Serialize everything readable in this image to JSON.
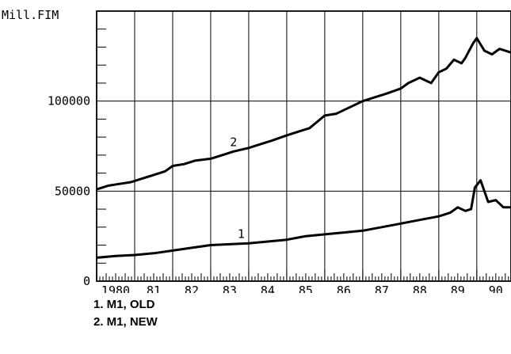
{
  "chart_data": {
    "type": "line",
    "ylabel": "Mill.FIM",
    "xlabel": "",
    "ylim": [
      0,
      150000
    ],
    "xlim": [
      1980.0,
      1990.9
    ],
    "yticks": [
      0,
      50000,
      100000
    ],
    "ytick_labels": [
      "0",
      "50000",
      "100000"
    ],
    "xtick_labels": [
      {
        "label": "1980",
        "x": 1980.5
      },
      {
        "label": "81",
        "x": 1981.5
      },
      {
        "label": "82",
        "x": 1982.5
      },
      {
        "label": "83",
        "x": 1983.5
      },
      {
        "label": "84",
        "x": 1984.5
      },
      {
        "label": "85",
        "x": 1985.5
      },
      {
        "label": "86",
        "x": 1986.5
      },
      {
        "label": "87",
        "x": 1987.5
      },
      {
        "label": "88",
        "x": 1988.5
      },
      {
        "label": "89",
        "x": 1989.5
      },
      {
        "label": "90",
        "x": 1990.5
      }
    ],
    "grid": true,
    "series": [
      {
        "name": "1",
        "x": [
          1980.0,
          1980.5,
          1981.0,
          1981.5,
          1982.0,
          1982.5,
          1983.0,
          1983.5,
          1984.0,
          1984.5,
          1985.0,
          1985.5,
          1986.0,
          1986.5,
          1987.0,
          1987.5,
          1988.0,
          1988.5,
          1989.0,
          1989.3,
          1989.5,
          1989.7,
          1989.85,
          1989.95,
          1990.1,
          1990.3,
          1990.5,
          1990.7,
          1990.9
        ],
        "values": [
          13000,
          14000,
          14500,
          15500,
          17000,
          18500,
          20000,
          20500,
          21000,
          22000,
          23000,
          25000,
          26000,
          27000,
          28000,
          30000,
          32000,
          34000,
          36000,
          38000,
          41000,
          39000,
          40000,
          52000,
          56000,
          44000,
          45000,
          41000,
          41000
        ]
      },
      {
        "name": "2",
        "x": [
          1980.0,
          1980.3,
          1980.6,
          1980.9,
          1981.2,
          1981.5,
          1981.8,
          1982.0,
          1982.3,
          1982.6,
          1983.0,
          1983.3,
          1983.6,
          1984.0,
          1984.3,
          1984.6,
          1985.0,
          1985.3,
          1985.6,
          1986.0,
          1986.3,
          1986.6,
          1987.0,
          1987.3,
          1987.6,
          1988.0,
          1988.2,
          1988.5,
          1988.8,
          1989.0,
          1989.2,
          1989.4,
          1989.5,
          1989.6,
          1989.7,
          1989.8,
          1989.9,
          1990.0,
          1990.2,
          1990.4,
          1990.6,
          1990.9
        ],
        "values": [
          51000,
          53000,
          54000,
          55000,
          57000,
          59000,
          61000,
          64000,
          65000,
          67000,
          68000,
          70000,
          72000,
          74000,
          76000,
          78000,
          81000,
          83000,
          85000,
          92000,
          93000,
          96000,
          100000,
          102000,
          104000,
          107000,
          110000,
          113000,
          110000,
          116000,
          118000,
          123000,
          122000,
          121000,
          124000,
          128000,
          132000,
          135000,
          128000,
          126000,
          129000,
          127000
        ]
      }
    ],
    "annotations": [
      {
        "text": "1",
        "x": 1983.8,
        "y": 24000
      },
      {
        "text": "2",
        "x": 1983.6,
        "y": 75000
      }
    ]
  },
  "legend": {
    "items": [
      "1. M1, OLD",
      "2. M1, NEW"
    ]
  },
  "colors": {
    "line": "#000000",
    "background": "#ffffff"
  }
}
